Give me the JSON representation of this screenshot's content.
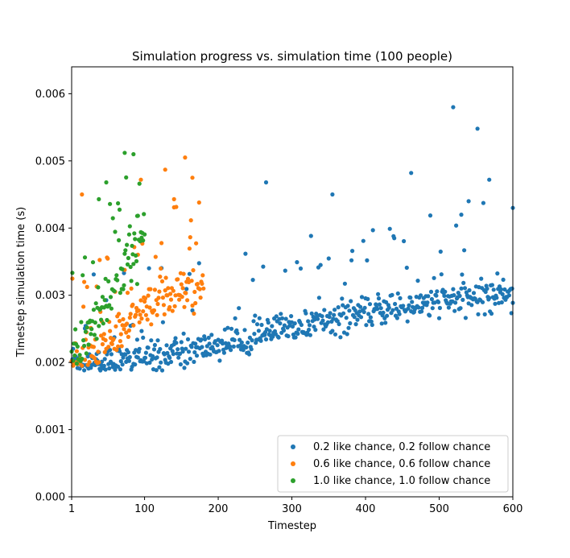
{
  "chart_data": {
    "type": "scatter",
    "title": "Simulation progress vs. simulation time (100 people)",
    "xlabel": "Timestep",
    "ylabel": "Timestep simulation time (s)",
    "xlim": [
      1,
      600
    ],
    "ylim": [
      0,
      0.0064
    ],
    "x_ticks": [
      1,
      100,
      200,
      300,
      400,
      500,
      600
    ],
    "y_ticks": [
      0.0,
      0.001,
      0.002,
      0.003,
      0.004,
      0.005,
      0.006
    ],
    "y_tick_labels": [
      "0.000",
      "0.001",
      "0.002",
      "0.003",
      "0.004",
      "0.005",
      "0.006"
    ],
    "grid": false,
    "legend_position": "lower-right",
    "series": [
      {
        "name": "0.2 like chance, 0.2 follow chance",
        "color": "#1f77b4",
        "n_points": 600,
        "trend": "baseline rising from about 0.0020 at timestep 1 to about 0.0030 at timestep 600, with scattered outliers up to 0.0058",
        "x": [
          5,
          20,
          40,
          60,
          80,
          100,
          120,
          140,
          160,
          180,
          200,
          220,
          240,
          260,
          280,
          300,
          320,
          340,
          360,
          380,
          400,
          420,
          440,
          460,
          480,
          500,
          520,
          540,
          560,
          580,
          600
        ],
        "y": [
          0.00205,
          0.002,
          0.00198,
          0.00202,
          0.00205,
          0.00208,
          0.00212,
          0.00215,
          0.00218,
          0.00222,
          0.00226,
          0.00232,
          0.00237,
          0.00242,
          0.00246,
          0.0025,
          0.00255,
          0.0026,
          0.00265,
          0.0027,
          0.00274,
          0.00278,
          0.00281,
          0.00284,
          0.00287,
          0.0029,
          0.00293,
          0.00296,
          0.00299,
          0.00302,
          0.00305
        ],
        "outliers": [
          [
            519,
            0.0058
          ],
          [
            552,
            0.00548
          ],
          [
            462,
            0.00482
          ],
          [
            568,
            0.00472
          ],
          [
            355,
            0.0045
          ],
          [
            265,
            0.00468
          ],
          [
            530,
            0.0042
          ],
          [
            600,
            0.0043
          ],
          [
            540,
            0.0044
          ]
        ]
      },
      {
        "name": "0.6 like chance, 0.6 follow chance",
        "color": "#ff7f0e",
        "n_points": 180,
        "trend": "baseline rising from about 0.0020 at timestep 1 to about 0.0031 at timestep 180, with outliers up to 0.0051",
        "x": [
          5,
          20,
          40,
          60,
          80,
          100,
          120,
          140,
          160,
          180
        ],
        "y": [
          0.002,
          0.0021,
          0.00225,
          0.0024,
          0.0026,
          0.00275,
          0.00285,
          0.00295,
          0.00305,
          0.00315
        ],
        "outliers": [
          [
            155,
            0.00505
          ],
          [
            128,
            0.00487
          ],
          [
            95,
            0.00472
          ],
          [
            165,
            0.00475
          ],
          [
            15,
            0.0045
          ],
          [
            140,
            0.00443
          ]
        ]
      },
      {
        "name": "1.0 like chance, 1.0 follow chance",
        "color": "#2ca02c",
        "n_points": 100,
        "trend": "steep rise from about 0.0021 at timestep 1 to about 0.0039 at timestep 100, with outliers up to 0.0051",
        "x": [
          2,
          10,
          20,
          30,
          40,
          50,
          60,
          70,
          80,
          90,
          100
        ],
        "y": [
          0.0021,
          0.0022,
          0.00235,
          0.00255,
          0.00275,
          0.00295,
          0.00315,
          0.00335,
          0.00355,
          0.00375,
          0.0039
        ],
        "outliers": [
          [
            73,
            0.00512
          ],
          [
            85,
            0.0051
          ],
          [
            48,
            0.00468
          ],
          [
            38,
            0.00443
          ],
          [
            90,
            0.00418
          ]
        ]
      }
    ]
  }
}
